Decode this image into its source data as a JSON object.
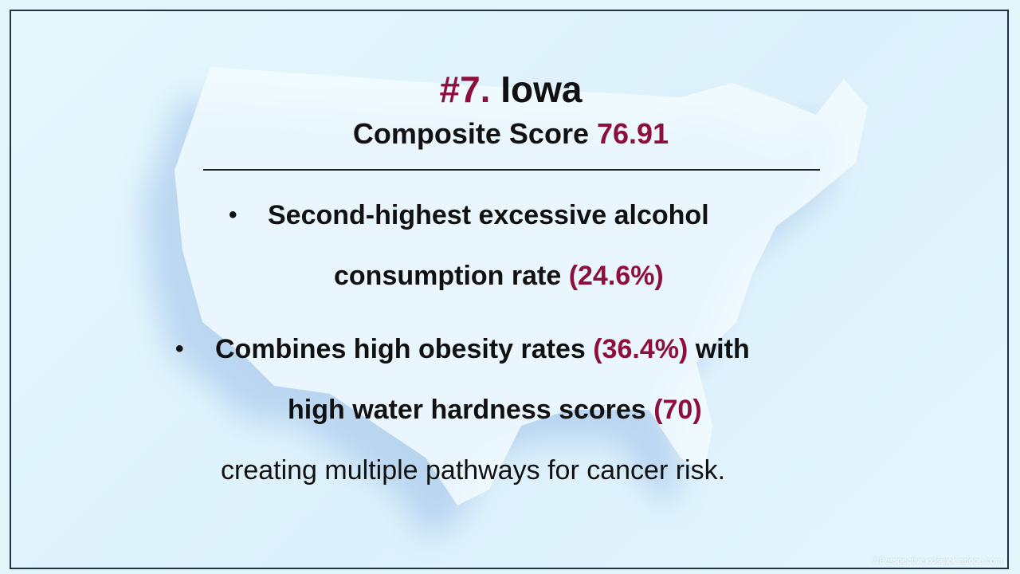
{
  "slide": {
    "rank": "#7.",
    "state": "Iowa",
    "score_label": "Composite Score",
    "score_value": "76.91"
  },
  "bullets": [
    {
      "marker": "•",
      "line1": "Second-highest excessive alcohol",
      "line2_text": "consumption rate",
      "line2_value": "(24.6%)"
    },
    {
      "marker": "•",
      "line1_text": "Combines high obesity rates",
      "line1_value": "(36.4%)",
      "line1_suffix": "with",
      "line2_text": "high water hardness scores",
      "line2_value": "(70)",
      "line3": "creating multiple pathways for cancer risk."
    }
  ],
  "credit": "©Perspectivexx/stock.adobe.com",
  "colors": {
    "accent": "#8c0f3c",
    "text": "#111111",
    "background": "#e3f6fc"
  }
}
